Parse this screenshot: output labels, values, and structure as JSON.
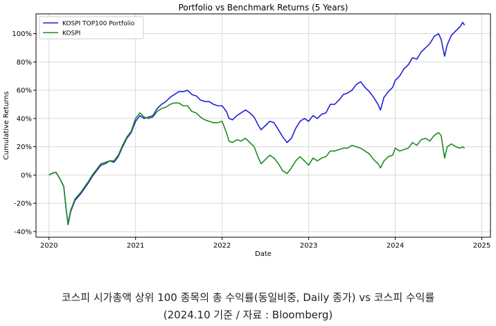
{
  "chart_data": {
    "type": "line",
    "title": "Portfolio vs Benchmark Returns (5 Years)",
    "xlabel": "Date",
    "ylabel": "Cumulative Returns",
    "xlim": [
      2019.85,
      2025.1
    ],
    "ylim": [
      -0.44,
      1.14
    ],
    "x_ticks": [
      2020,
      2021,
      2022,
      2023,
      2024,
      2025
    ],
    "x_tick_labels": [
      "2020",
      "2021",
      "2022",
      "2023",
      "2024",
      "2025"
    ],
    "y_ticks": [
      -0.4,
      -0.2,
      0,
      0.2,
      0.4,
      0.6,
      0.8,
      1.0
    ],
    "y_tick_labels": [
      "-40%",
      "-20%",
      "0%",
      "20%",
      "40%",
      "60%",
      "80%",
      "100%"
    ],
    "grid": true,
    "legend_position": "top-left",
    "series": [
      {
        "name": "KOSPI TOP100 Portfolio",
        "color": "#1f1fd6",
        "points": [
          [
            2020.0,
            0.0
          ],
          [
            2020.03,
            0.01
          ],
          [
            2020.08,
            0.02
          ],
          [
            2020.12,
            -0.02
          ],
          [
            2020.17,
            -0.08
          ],
          [
            2020.2,
            -0.25
          ],
          [
            2020.22,
            -0.35
          ],
          [
            2020.25,
            -0.26
          ],
          [
            2020.3,
            -0.18
          ],
          [
            2020.37,
            -0.13
          ],
          [
            2020.45,
            -0.06
          ],
          [
            2020.5,
            -0.01
          ],
          [
            2020.55,
            0.03
          ],
          [
            2020.6,
            0.07
          ],
          [
            2020.65,
            0.08
          ],
          [
            2020.7,
            0.1
          ],
          [
            2020.75,
            0.09
          ],
          [
            2020.8,
            0.13
          ],
          [
            2020.85,
            0.2
          ],
          [
            2020.9,
            0.26
          ],
          [
            2020.95,
            0.3
          ],
          [
            2021.0,
            0.38
          ],
          [
            2021.05,
            0.42
          ],
          [
            2021.1,
            0.4
          ],
          [
            2021.15,
            0.41
          ],
          [
            2021.2,
            0.42
          ],
          [
            2021.25,
            0.47
          ],
          [
            2021.3,
            0.5
          ],
          [
            2021.35,
            0.52
          ],
          [
            2021.4,
            0.55
          ],
          [
            2021.45,
            0.57
          ],
          [
            2021.5,
            0.59
          ],
          [
            2021.55,
            0.59
          ],
          [
            2021.6,
            0.6
          ],
          [
            2021.65,
            0.57
          ],
          [
            2021.7,
            0.56
          ],
          [
            2021.75,
            0.53
          ],
          [
            2021.8,
            0.52
          ],
          [
            2021.85,
            0.52
          ],
          [
            2021.9,
            0.5
          ],
          [
            2021.95,
            0.49
          ],
          [
            2022.0,
            0.49
          ],
          [
            2022.05,
            0.45
          ],
          [
            2022.08,
            0.4
          ],
          [
            2022.12,
            0.39
          ],
          [
            2022.17,
            0.42
          ],
          [
            2022.22,
            0.44
          ],
          [
            2022.27,
            0.46
          ],
          [
            2022.32,
            0.44
          ],
          [
            2022.37,
            0.41
          ],
          [
            2022.42,
            0.35
          ],
          [
            2022.45,
            0.32
          ],
          [
            2022.5,
            0.35
          ],
          [
            2022.55,
            0.38
          ],
          [
            2022.6,
            0.37
          ],
          [
            2022.65,
            0.32
          ],
          [
            2022.7,
            0.27
          ],
          [
            2022.75,
            0.23
          ],
          [
            2022.8,
            0.26
          ],
          [
            2022.85,
            0.33
          ],
          [
            2022.9,
            0.38
          ],
          [
            2022.95,
            0.4
          ],
          [
            2023.0,
            0.38
          ],
          [
            2023.05,
            0.42
          ],
          [
            2023.1,
            0.4
          ],
          [
            2023.15,
            0.43
          ],
          [
            2023.2,
            0.44
          ],
          [
            2023.25,
            0.5
          ],
          [
            2023.3,
            0.5
          ],
          [
            2023.35,
            0.53
          ],
          [
            2023.4,
            0.57
          ],
          [
            2023.45,
            0.58
          ],
          [
            2023.5,
            0.6
          ],
          [
            2023.55,
            0.64
          ],
          [
            2023.6,
            0.66
          ],
          [
            2023.65,
            0.62
          ],
          [
            2023.7,
            0.59
          ],
          [
            2023.75,
            0.55
          ],
          [
            2023.8,
            0.5
          ],
          [
            2023.83,
            0.46
          ],
          [
            2023.87,
            0.55
          ],
          [
            2023.92,
            0.59
          ],
          [
            2023.97,
            0.62
          ],
          [
            2024.0,
            0.67
          ],
          [
            2024.05,
            0.7
          ],
          [
            2024.1,
            0.75
          ],
          [
            2024.15,
            0.78
          ],
          [
            2024.2,
            0.83
          ],
          [
            2024.25,
            0.82
          ],
          [
            2024.3,
            0.87
          ],
          [
            2024.35,
            0.9
          ],
          [
            2024.4,
            0.93
          ],
          [
            2024.45,
            0.98
          ],
          [
            2024.5,
            1.0
          ],
          [
            2024.53,
            0.96
          ],
          [
            2024.57,
            0.84
          ],
          [
            2024.6,
            0.92
          ],
          [
            2024.65,
            0.99
          ],
          [
            2024.7,
            1.02
          ],
          [
            2024.75,
            1.05
          ],
          [
            2024.78,
            1.08
          ],
          [
            2024.8,
            1.06
          ]
        ]
      },
      {
        "name": "KOSPI",
        "color": "#1e8a1e",
        "points": [
          [
            2020.0,
            0.0
          ],
          [
            2020.03,
            0.01
          ],
          [
            2020.08,
            0.02
          ],
          [
            2020.12,
            -0.02
          ],
          [
            2020.17,
            -0.08
          ],
          [
            2020.2,
            -0.25
          ],
          [
            2020.22,
            -0.34
          ],
          [
            2020.25,
            -0.25
          ],
          [
            2020.3,
            -0.17
          ],
          [
            2020.37,
            -0.12
          ],
          [
            2020.45,
            -0.05
          ],
          [
            2020.5,
            0.0
          ],
          [
            2020.55,
            0.04
          ],
          [
            2020.6,
            0.08
          ],
          [
            2020.65,
            0.09
          ],
          [
            2020.7,
            0.1
          ],
          [
            2020.75,
            0.1
          ],
          [
            2020.8,
            0.14
          ],
          [
            2020.85,
            0.21
          ],
          [
            2020.9,
            0.27
          ],
          [
            2020.95,
            0.31
          ],
          [
            2021.0,
            0.4
          ],
          [
            2021.05,
            0.44
          ],
          [
            2021.1,
            0.41
          ],
          [
            2021.15,
            0.4
          ],
          [
            2021.2,
            0.41
          ],
          [
            2021.25,
            0.45
          ],
          [
            2021.3,
            0.47
          ],
          [
            2021.35,
            0.48
          ],
          [
            2021.4,
            0.5
          ],
          [
            2021.45,
            0.51
          ],
          [
            2021.5,
            0.51
          ],
          [
            2021.55,
            0.49
          ],
          [
            2021.6,
            0.49
          ],
          [
            2021.65,
            0.45
          ],
          [
            2021.7,
            0.44
          ],
          [
            2021.75,
            0.41
          ],
          [
            2021.8,
            0.39
          ],
          [
            2021.85,
            0.38
          ],
          [
            2021.9,
            0.37
          ],
          [
            2021.95,
            0.37
          ],
          [
            2022.0,
            0.38
          ],
          [
            2022.05,
            0.3
          ],
          [
            2022.08,
            0.24
          ],
          [
            2022.12,
            0.23
          ],
          [
            2022.17,
            0.25
          ],
          [
            2022.22,
            0.24
          ],
          [
            2022.27,
            0.26
          ],
          [
            2022.32,
            0.23
          ],
          [
            2022.37,
            0.2
          ],
          [
            2022.42,
            0.12
          ],
          [
            2022.45,
            0.08
          ],
          [
            2022.5,
            0.11
          ],
          [
            2022.55,
            0.14
          ],
          [
            2022.6,
            0.12
          ],
          [
            2022.65,
            0.08
          ],
          [
            2022.7,
            0.03
          ],
          [
            2022.75,
            0.01
          ],
          [
            2022.8,
            0.05
          ],
          [
            2022.85,
            0.1
          ],
          [
            2022.9,
            0.13
          ],
          [
            2022.95,
            0.1
          ],
          [
            2023.0,
            0.07
          ],
          [
            2023.05,
            0.12
          ],
          [
            2023.1,
            0.1
          ],
          [
            2023.15,
            0.12
          ],
          [
            2023.2,
            0.13
          ],
          [
            2023.25,
            0.17
          ],
          [
            2023.3,
            0.17
          ],
          [
            2023.35,
            0.18
          ],
          [
            2023.4,
            0.19
          ],
          [
            2023.45,
            0.19
          ],
          [
            2023.5,
            0.21
          ],
          [
            2023.55,
            0.2
          ],
          [
            2023.6,
            0.19
          ],
          [
            2023.65,
            0.17
          ],
          [
            2023.7,
            0.15
          ],
          [
            2023.75,
            0.11
          ],
          [
            2023.8,
            0.08
          ],
          [
            2023.83,
            0.05
          ],
          [
            2023.87,
            0.1
          ],
          [
            2023.92,
            0.13
          ],
          [
            2023.97,
            0.14
          ],
          [
            2024.0,
            0.19
          ],
          [
            2024.05,
            0.17
          ],
          [
            2024.1,
            0.18
          ],
          [
            2024.15,
            0.19
          ],
          [
            2024.2,
            0.23
          ],
          [
            2024.25,
            0.21
          ],
          [
            2024.3,
            0.25
          ],
          [
            2024.35,
            0.26
          ],
          [
            2024.4,
            0.24
          ],
          [
            2024.45,
            0.28
          ],
          [
            2024.5,
            0.3
          ],
          [
            2024.53,
            0.28
          ],
          [
            2024.57,
            0.12
          ],
          [
            2024.6,
            0.2
          ],
          [
            2024.65,
            0.22
          ],
          [
            2024.7,
            0.2
          ],
          [
            2024.75,
            0.19
          ],
          [
            2024.78,
            0.2
          ],
          [
            2024.8,
            0.19
          ]
        ]
      }
    ]
  },
  "caption": {
    "line1": "코스피 시가총액 상위 100 종목의 총 수익률(동일비중, Daily 종가) vs 코스피 수익률",
    "line2": "(2024.10 기준 / 자료 : Bloomberg)"
  }
}
